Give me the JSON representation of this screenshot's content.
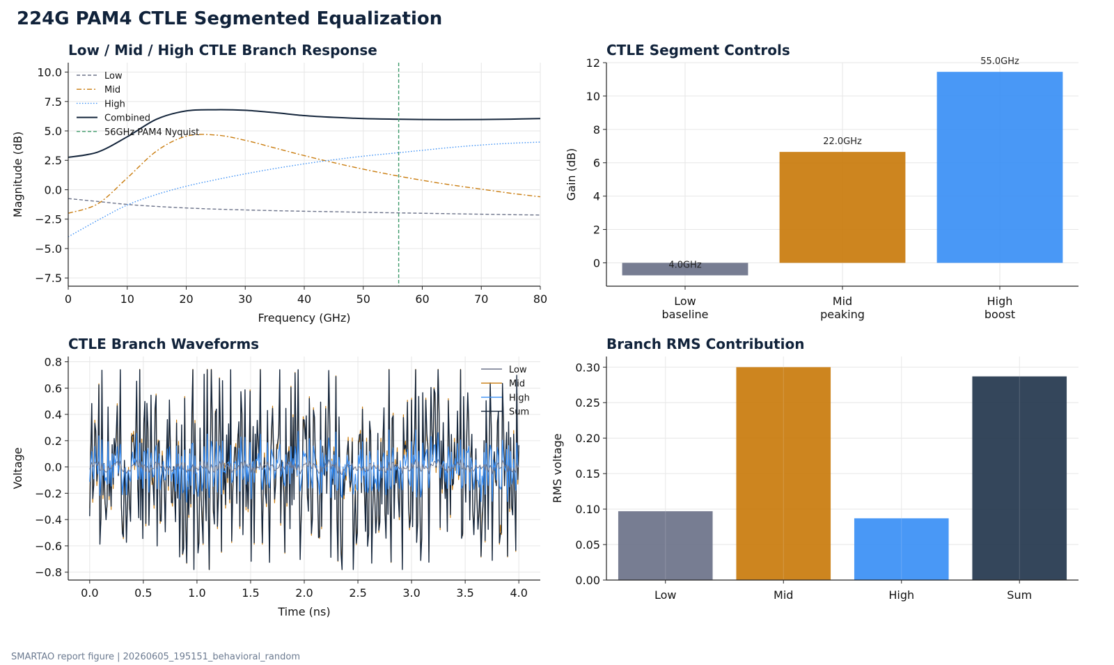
{
  "suptitle": "224G PAM4 CTLE Segmented Equalization",
  "footer": "SMARTAO report figure | 20260605_195151_behavioral_random",
  "colors": {
    "low": "#6b7289",
    "mid": "#c97b0c",
    "high": "#3a8ff5",
    "sum": "#13243a",
    "nyquist": "#3d9a6a",
    "title": "#10223a",
    "grid": "#e6e6e6"
  },
  "chart_data": [
    {
      "type": "line",
      "title": "Low / Mid / High CTLE Branch Response",
      "xlabel": "Frequency (GHz)",
      "ylabel": "Magnitude (dB)",
      "xlim": [
        0,
        80
      ],
      "ylim": [
        -8.2,
        10.8
      ],
      "xticks": [
        0,
        10,
        20,
        30,
        40,
        50,
        60,
        70,
        80
      ],
      "yticks": [
        -7.5,
        -5.0,
        -2.5,
        0.0,
        2.5,
        5.0,
        7.5,
        10.0
      ],
      "ytick_labels": [
        "−7.5",
        "−5.0",
        "−2.5",
        "0.0",
        "2.5",
        "5.0",
        "7.5",
        "10.0"
      ],
      "x": [
        0,
        5,
        10,
        15,
        20,
        25,
        30,
        35,
        40,
        45,
        50,
        55,
        60,
        65,
        70,
        75,
        80
      ],
      "series": [
        {
          "name": "Low",
          "style": "dashed",
          "values": [
            -0.75,
            -1.0,
            -1.25,
            -1.42,
            -1.55,
            -1.65,
            -1.72,
            -1.78,
            -1.83,
            -1.87,
            -1.92,
            -1.96,
            -2.0,
            -2.04,
            -2.08,
            -2.12,
            -2.15
          ]
        },
        {
          "name": "Mid",
          "style": "dashdot",
          "values": [
            -2.0,
            -1.2,
            1.0,
            3.3,
            4.55,
            4.65,
            4.2,
            3.55,
            2.9,
            2.3,
            1.75,
            1.25,
            0.8,
            0.4,
            0.05,
            -0.3,
            -0.6
          ]
        },
        {
          "name": "High",
          "style": "dotted",
          "values": [
            -4.0,
            -2.6,
            -1.3,
            -0.4,
            0.3,
            0.85,
            1.35,
            1.8,
            2.2,
            2.55,
            2.85,
            3.1,
            3.35,
            3.6,
            3.8,
            3.95,
            4.05
          ]
        },
        {
          "name": "Combined",
          "style": "solid",
          "values": [
            2.75,
            3.2,
            4.5,
            6.0,
            6.7,
            6.8,
            6.75,
            6.55,
            6.3,
            6.15,
            6.05,
            6.0,
            5.97,
            5.96,
            5.97,
            6.0,
            6.05
          ]
        }
      ],
      "vline": {
        "name": "56GHz PAM4 Nyquist",
        "x": 56
      },
      "legend": "top-left",
      "grid": true
    },
    {
      "type": "bar",
      "title": "CTLE Segment Controls",
      "ylabel": "Gain (dB)",
      "categories": [
        [
          "Low",
          "baseline"
        ],
        [
          "Mid",
          "peaking"
        ],
        [
          "High",
          "boost"
        ]
      ],
      "values": [
        -0.75,
        6.65,
        11.45
      ],
      "bar_labels": [
        "4.0GHz",
        "22.0GHz",
        "55.0GHz"
      ],
      "ylim": [
        -1.4,
        12.0
      ],
      "yticks": [
        0,
        2,
        4,
        6,
        8,
        10,
        12
      ],
      "grid": true
    },
    {
      "type": "line",
      "title": "CTLE Branch Waveforms",
      "xlabel": "Time (ns)",
      "ylabel": "Voltage",
      "xlim": [
        -0.2,
        4.2
      ],
      "ylim": [
        -0.86,
        0.84
      ],
      "xticks": [
        0.0,
        0.5,
        1.0,
        1.5,
        2.0,
        2.5,
        3.0,
        3.5,
        4.0
      ],
      "xtick_labels": [
        "0.0",
        "0.5",
        "1.0",
        "1.5",
        "2.0",
        "2.5",
        "3.0",
        "3.5",
        "4.0"
      ],
      "yticks": [
        -0.8,
        -0.6,
        -0.4,
        -0.2,
        0.0,
        0.2,
        0.4,
        0.6,
        0.8
      ],
      "ytick_labels": [
        "−0.8",
        "−0.6",
        "−0.4",
        "−0.2",
        "0.0",
        "0.2",
        "0.4",
        "0.6",
        "0.8"
      ],
      "series_names": [
        "Low",
        "Mid",
        "High",
        "Sum"
      ],
      "x_range": [
        0,
        4.0
      ],
      "amplitude_scale": {
        "Low": 0.05,
        "Mid": 0.95,
        "High": 0.3,
        "Sum": 1.0
      },
      "legend": "top-right",
      "grid": true
    },
    {
      "type": "bar",
      "title": "Branch RMS Contribution",
      "ylabel": "RMS voltage",
      "categories": [
        "Low",
        "Mid",
        "High",
        "Sum"
      ],
      "values": [
        0.097,
        0.3,
        0.087,
        0.287
      ],
      "ylim": [
        0,
        0.315
      ],
      "yticks": [
        0.0,
        0.05,
        0.1,
        0.15,
        0.2,
        0.25,
        0.3
      ],
      "ytick_labels": [
        "0.00",
        "0.05",
        "0.10",
        "0.15",
        "0.20",
        "0.25",
        "0.30"
      ],
      "grid": true
    }
  ]
}
